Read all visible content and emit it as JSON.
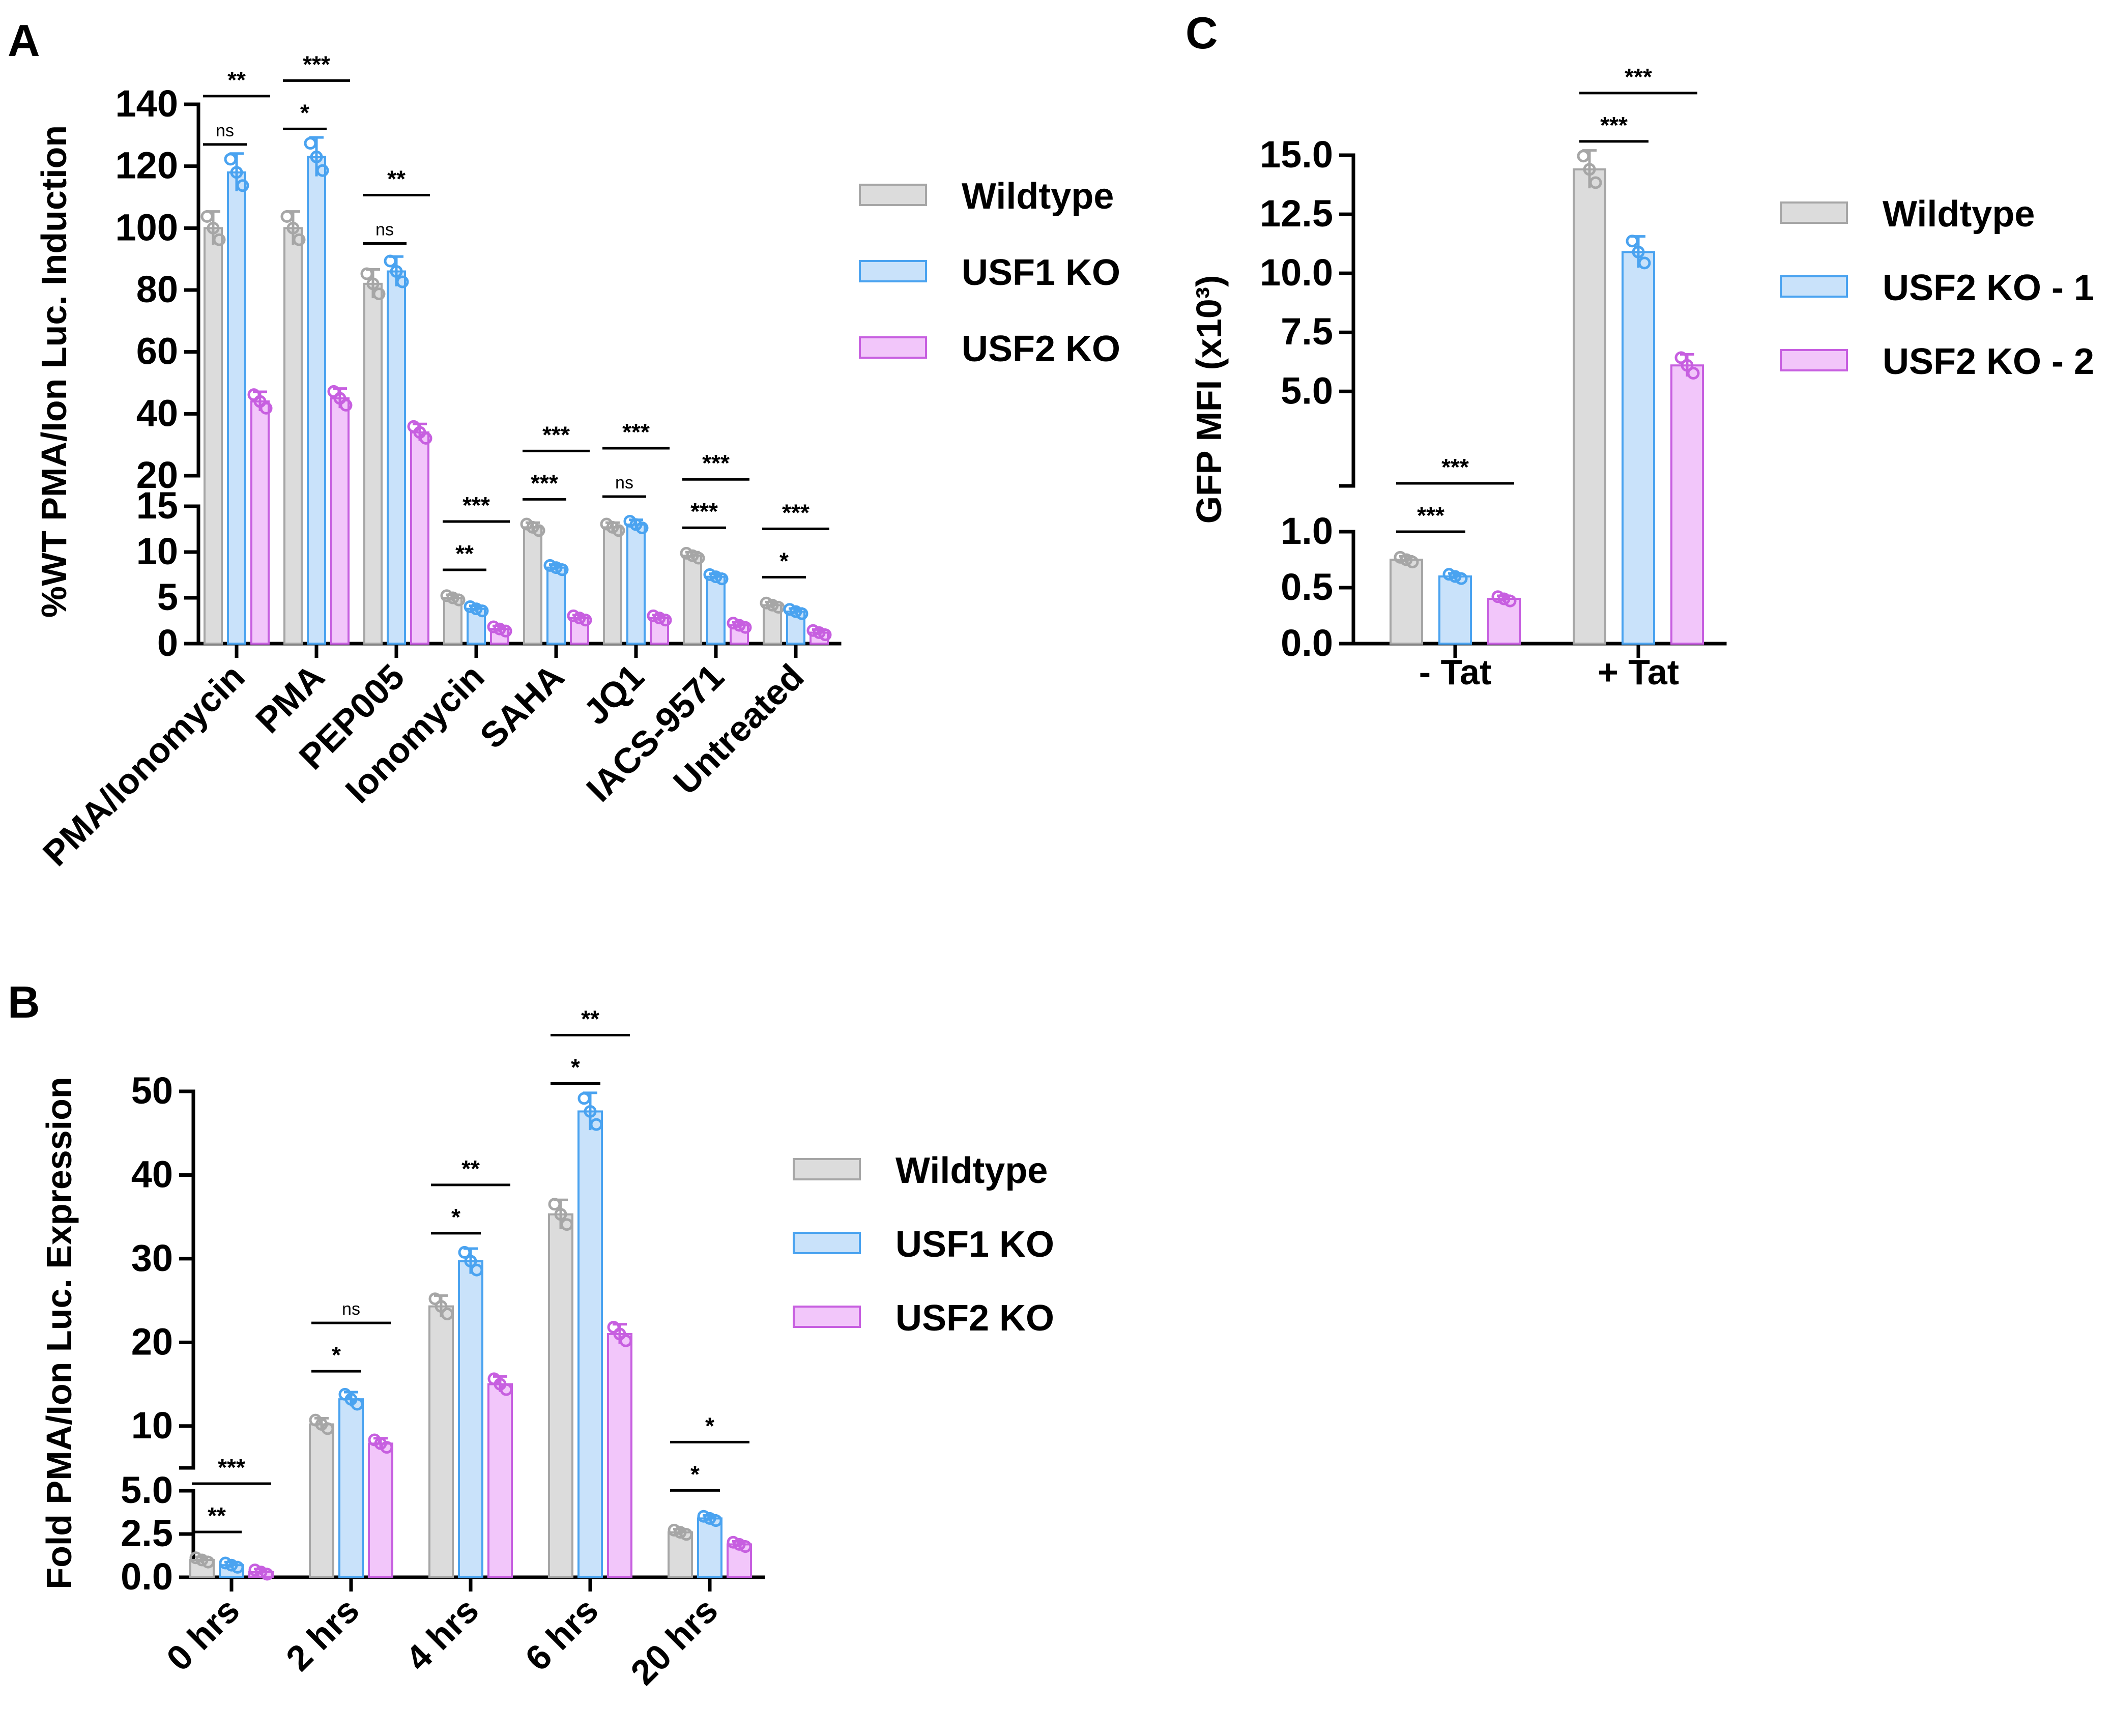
{
  "chart_data": [
    {
      "panel": "A",
      "type": "bar",
      "ylabel": "%WT PMA/Ion Luc. Induction",
      "broken_axis": {
        "lower": [
          0,
          15
        ],
        "upper": [
          20,
          140
        ]
      },
      "lower_ticks": [
        "0",
        "5",
        "10",
        "15"
      ],
      "upper_ticks": [
        "20",
        "40",
        "60",
        "80",
        "100",
        "120",
        "140"
      ],
      "categories": [
        "PMA/Ionomycin",
        "PMA",
        "PEP005",
        "Ionomycin",
        "SAHA",
        "JQ1",
        "IACS-9571",
        "Untreated"
      ],
      "series": [
        {
          "name": "Wildtype",
          "color": "#a6a6a6",
          "fill": "#dcdcdc",
          "values": [
            100,
            100,
            82,
            5,
            12.7,
            12.7,
            9.6,
            4.2
          ]
        },
        {
          "name": "USF1 KO",
          "color": "#4aa3f0",
          "fill": "#c9e2fa",
          "values": [
            118,
            123,
            86,
            3.8,
            8.3,
            13,
            7.3,
            3.5
          ]
        },
        {
          "name": "USF2 KO",
          "color": "#c75fe0",
          "fill": "#f2c6fa",
          "values": [
            44,
            45,
            34,
            1.6,
            2.8,
            2.8,
            2.0,
            1.2
          ]
        }
      ],
      "legend": [
        "Wildtype",
        "USF1 KO",
        "USF2 KO"
      ],
      "significance": [
        {
          "category": "PMA/Ionomycin",
          "usf1": "ns",
          "usf2": "**"
        },
        {
          "category": "PMA",
          "usf1": "*",
          "usf2": "***"
        },
        {
          "category": "PEP005",
          "usf1": "ns",
          "usf2": "**"
        },
        {
          "category": "Ionomycin",
          "usf1": "**",
          "usf2": "***"
        },
        {
          "category": "SAHA",
          "usf1": "***",
          "usf2": "***"
        },
        {
          "category": "JQ1",
          "usf1": "ns",
          "usf2": "***"
        },
        {
          "category": "IACS-9571",
          "usf1": "***",
          "usf2": "***"
        },
        {
          "category": "Untreated",
          "usf1": "*",
          "usf2": "***"
        }
      ]
    },
    {
      "panel": "B",
      "type": "bar",
      "ylabel": "Fold PMA/Ion Luc. Expression",
      "broken_axis": {
        "lower": [
          0,
          5
        ],
        "upper": [
          5,
          50
        ]
      },
      "lower_ticks": [
        "0.0",
        "2.5",
        "5.0"
      ],
      "upper_ticks": [
        "10",
        "20",
        "30",
        "40",
        "50"
      ],
      "categories": [
        "0 hrs",
        "2 hrs",
        "4 hrs",
        "6 hrs",
        "20 hrs"
      ],
      "series": [
        {
          "name": "Wildtype",
          "color": "#a6a6a6",
          "fill": "#dcdcdc",
          "values": [
            1.0,
            10.2,
            24.3,
            35.3,
            2.6
          ]
        },
        {
          "name": "USF1 KO",
          "color": "#4aa3f0",
          "fill": "#c9e2fa",
          "values": [
            0.7,
            13.2,
            29.7,
            47.6,
            3.4
          ]
        },
        {
          "name": "USF2 KO",
          "color": "#c75fe0",
          "fill": "#f2c6fa",
          "values": [
            0.3,
            7.9,
            15.0,
            21.0,
            1.9
          ]
        }
      ],
      "legend": [
        "Wildtype",
        "USF1 KO",
        "USF2 KO"
      ],
      "significance": [
        {
          "category": "0 hrs",
          "usf1": "**",
          "usf2": "***"
        },
        {
          "category": "2 hrs",
          "usf1": "*",
          "usf2": "ns"
        },
        {
          "category": "4 hrs",
          "usf1": "*",
          "usf2": "**"
        },
        {
          "category": "6 hrs",
          "usf1": "*",
          "usf2": "**"
        },
        {
          "category": "20 hrs",
          "usf1": "*",
          "usf2": "*"
        }
      ]
    },
    {
      "panel": "C",
      "type": "bar",
      "ylabel": "GFP MFI (x10³)",
      "broken_axis": {
        "lower": [
          0,
          1
        ],
        "upper": [
          1,
          15
        ]
      },
      "lower_ticks": [
        "0.0",
        "0.5",
        "1.0"
      ],
      "upper_ticks": [
        "5.0",
        "7.5",
        "10.0",
        "12.5",
        "15.0"
      ],
      "categories": [
        "- Tat",
        "+ Tat"
      ],
      "series": [
        {
          "name": "Wildtype",
          "color": "#a6a6a6",
          "fill": "#dcdcdc",
          "values": [
            0.75,
            14.4
          ]
        },
        {
          "name": "USF2 KO - 1",
          "color": "#4aa3f0",
          "fill": "#c9e2fa",
          "values": [
            0.6,
            10.9
          ]
        },
        {
          "name": "USF2 KO - 2",
          "color": "#c75fe0",
          "fill": "#f2c6fa",
          "values": [
            0.4,
            6.1
          ]
        }
      ],
      "legend": [
        "Wildtype",
        "USF2 KO - 1",
        "USF2 KO - 2"
      ],
      "significance": [
        {
          "category": "- Tat",
          "usf1": "***",
          "usf2": "***"
        },
        {
          "category": "+ Tat",
          "usf1": "***",
          "usf2": "***"
        }
      ]
    }
  ],
  "panel_labels": {
    "a": "A",
    "b": "B",
    "c": "C"
  }
}
